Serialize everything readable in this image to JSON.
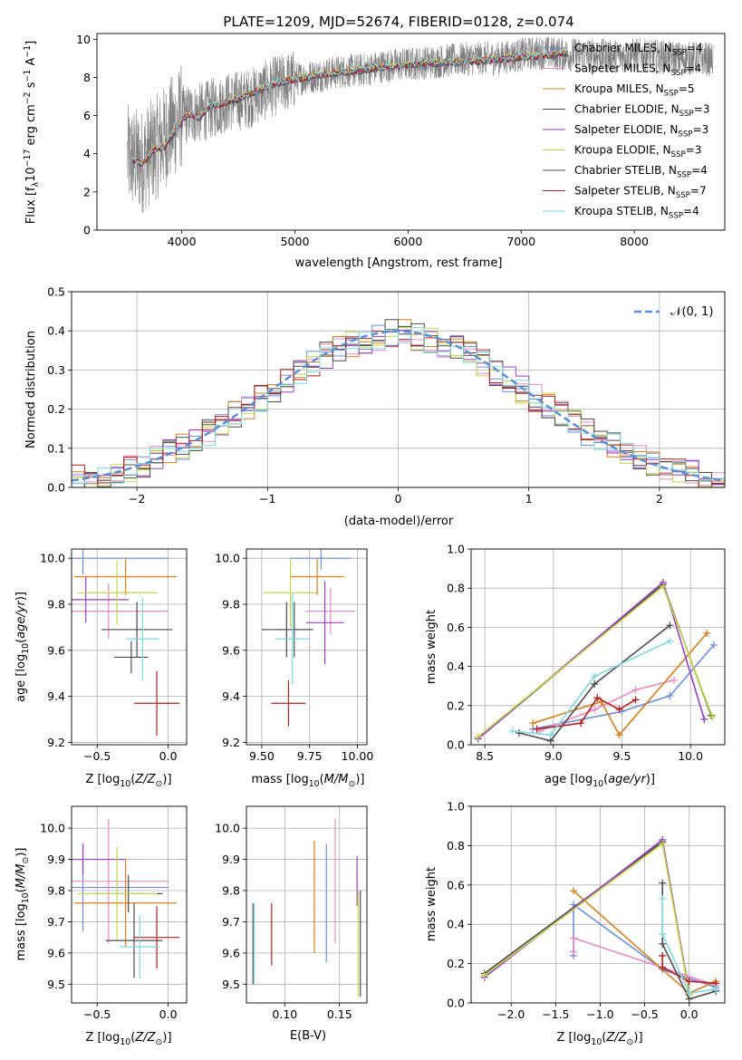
{
  "figure": {
    "title": "PLATE=1209, MJD=52674, FIBERID=0128, z=0.074"
  },
  "colors": {
    "Chabrier MILES": "#6d8fdc",
    "Salpeter MILES": "#e98bc4",
    "Kroupa MILES": "#d6801f",
    "Chabrier ELODIE": "#4a4a4a",
    "Salpeter ELODIE": "#9a3fc0",
    "Kroupa ELODIE": "#c3d64a",
    "Chabrier STELIB": "#4e4e4e",
    "Salpeter STELIB": "#b21f1f",
    "Kroupa STELIB": "#7fd9de",
    "data": "#808080",
    "normal": "#5b8fd9"
  },
  "chart_data": [
    {
      "id": "spectrum",
      "type": "line",
      "title": "PLATE=1209, MJD=52674, FIBERID=0128, z=0.074",
      "xlabel": "wavelength [Angstrom, rest frame]",
      "ylabel": "Flux [f_λ10^-17 erg cm^-2 s^-1 A^-1]",
      "xlim": [
        3250,
        8800
      ],
      "ylim": [
        0,
        10.3
      ],
      "xticks": [
        4000,
        5000,
        6000,
        7000,
        8000
      ],
      "yticks": [
        0,
        2,
        4,
        6,
        8,
        10
      ],
      "legend_position": "right",
      "legend": [
        {
          "label": "Chabrier MILES, N",
          "sub": "SSP",
          "suffix": "=4",
          "color_key": "Chabrier MILES"
        },
        {
          "label": "Salpeter MILES, N",
          "sub": "SSP",
          "suffix": "=4",
          "color_key": "Salpeter MILES"
        },
        {
          "label": "Kroupa MILES, N",
          "sub": "SSP",
          "suffix": "=5",
          "color_key": "Kroupa MILES"
        },
        {
          "label": "Chabrier ELODIE, N",
          "sub": "SSP",
          "suffix": "=3",
          "color_key": "Chabrier ELODIE"
        },
        {
          "label": "Salpeter ELODIE, N",
          "sub": "SSP",
          "suffix": "=3",
          "color_key": "Salpeter ELODIE"
        },
        {
          "label": "Kroupa ELODIE, N",
          "sub": "SSP",
          "suffix": "=3",
          "color_key": "Kroupa ELODIE"
        },
        {
          "label": "Chabrier STELIB, N",
          "sub": "SSP",
          "suffix": "=4",
          "color_key": "Chabrier STELIB"
        },
        {
          "label": "Salpeter STELIB, N",
          "sub": "SSP",
          "suffix": "=7",
          "color_key": "Salpeter STELIB"
        },
        {
          "label": "Kroupa STELIB, N",
          "sub": "SSP",
          "suffix": "=4",
          "color_key": "Kroupa STELIB"
        }
      ],
      "model_continuum": {
        "x": [
          3550,
          3650,
          3750,
          3850,
          3950,
          4050,
          4150,
          4250,
          4350,
          4500,
          4700,
          4900,
          5100,
          5300,
          5500,
          5700,
          5900,
          6100,
          6300,
          6500,
          6700,
          6900,
          7100,
          7300,
          7420
        ],
        "y": [
          3.7,
          3.5,
          4.2,
          4.4,
          5.3,
          6.1,
          5.9,
          6.5,
          6.6,
          6.9,
          7.4,
          7.8,
          8.0,
          8.2,
          8.3,
          8.5,
          8.6,
          8.7,
          8.8,
          8.8,
          8.9,
          9.0,
          9.1,
          9.2,
          9.3
        ]
      },
      "data_continuum": {
        "x": [
          3520,
          3650,
          3800,
          4000,
          4200,
          4400,
          4600,
          4800,
          5000,
          5200,
          5400,
          5600,
          5800,
          6000,
          6200,
          6400,
          6600,
          6800,
          7000,
          7200,
          7400,
          7600,
          7800,
          8000,
          8200,
          8400,
          8600,
          8700
        ],
        "y": [
          3.8,
          3.6,
          4.5,
          6.0,
          6.2,
          6.7,
          6.9,
          7.5,
          7.9,
          8.1,
          8.3,
          8.4,
          8.6,
          8.7,
          8.8,
          8.9,
          9.0,
          9.0,
          9.2,
          9.3,
          9.2,
          9.2,
          9.1,
          9.2,
          9.1,
          9.0,
          9.0,
          8.9
        ]
      }
    },
    {
      "id": "residuals",
      "type": "bar",
      "xlabel": "(data-model)/error",
      "ylabel": "Normed distribution",
      "xlim": [
        -2.5,
        2.5
      ],
      "ylim": [
        0,
        0.5
      ],
      "xticks": [
        -2,
        -1,
        0,
        1,
        2
      ],
      "yticks": [
        0.0,
        0.1,
        0.2,
        0.3,
        0.4,
        0.5
      ],
      "legend_position": "top-right",
      "legend": [
        "𝒩(0, 1)"
      ],
      "bin_width": 0.1,
      "histogram_envelope": {
        "x": [
          -2.5,
          -2.0,
          -1.5,
          -1.0,
          -0.5,
          0.0,
          0.5,
          1.0,
          1.5,
          2.0,
          2.5
        ],
        "y": [
          0.02,
          0.05,
          0.13,
          0.24,
          0.35,
          0.4,
          0.35,
          0.24,
          0.13,
          0.05,
          0.02
        ]
      }
    },
    {
      "id": "age-vs-Z",
      "type": "scatter",
      "xlabel": "Z [log10(Z/Z⊙)]",
      "ylabel": "age [log10(age/yr)]",
      "xlim": [
        -0.68,
        0.13
      ],
      "ylim": [
        9.19,
        10.04
      ],
      "xticks": [
        -0.5,
        0.0
      ],
      "yticks": [
        9.2,
        9.4,
        9.6,
        9.8,
        10.0
      ],
      "points": [
        {
          "color_key": "Chabrier MILES",
          "x": -0.6,
          "xerr": 0.6,
          "y": 10.0,
          "yerr": 0.07
        },
        {
          "color_key": "Salpeter MILES",
          "x": -0.42,
          "xerr": 0.42,
          "y": 9.77,
          "yerr": 0.12
        },
        {
          "color_key": "Kroupa MILES",
          "x": -0.3,
          "xerr": 0.36,
          "y": 9.92,
          "yerr": 0.08
        },
        {
          "color_key": "Chabrier ELODIE",
          "x": -0.22,
          "xerr": 0.25,
          "y": 9.69,
          "yerr": 0.12
        },
        {
          "color_key": "Salpeter ELODIE",
          "x": -0.58,
          "xerr": 0.3,
          "y": 9.82,
          "yerr": 0.1
        },
        {
          "color_key": "Kroupa ELODIE",
          "x": -0.36,
          "xerr": 0.28,
          "y": 9.85,
          "yerr": 0.14
        },
        {
          "color_key": "Chabrier STELIB",
          "x": -0.26,
          "xerr": 0.12,
          "y": 9.57,
          "yerr": 0.07
        },
        {
          "color_key": "Salpeter STELIB",
          "x": -0.08,
          "xerr": 0.16,
          "y": 9.37,
          "yerr": 0.14
        },
        {
          "color_key": "Kroupa STELIB",
          "x": -0.18,
          "xerr": 0.12,
          "y": 9.65,
          "yerr": 0.18
        }
      ]
    },
    {
      "id": "age-vs-mass",
      "type": "scatter",
      "xlabel": "mass [log10(M/M⊙)]",
      "xlim": [
        9.42,
        10.05
      ],
      "ylim": [
        9.19,
        10.04
      ],
      "xticks": [
        9.5,
        9.75,
        10.0
      ],
      "yticks": [
        9.2,
        9.4,
        9.6,
        9.8,
        10.0
      ],
      "points": [
        {
          "color_key": "Chabrier MILES",
          "x": 9.81,
          "xerr": 0.16,
          "y": 10.0,
          "yerr": 0.05
        },
        {
          "color_key": "Salpeter MILES",
          "x": 9.86,
          "xerr": 0.13,
          "y": 9.77,
          "yerr": 0.1
        },
        {
          "color_key": "Kroupa MILES",
          "x": 9.79,
          "xerr": 0.14,
          "y": 9.92,
          "yerr": 0.08
        },
        {
          "color_key": "Chabrier ELODIE",
          "x": 9.63,
          "xerr": 0.13,
          "y": 9.69,
          "yerr": 0.12
        },
        {
          "color_key": "Salpeter ELODIE",
          "x": 9.83,
          "xerr": 0.1,
          "y": 9.72,
          "yerr": 0.18
        },
        {
          "color_key": "Kroupa ELODIE",
          "x": 9.65,
          "xerr": 0.14,
          "y": 9.85,
          "yerr": 0.15
        },
        {
          "color_key": "Chabrier STELIB",
          "x": 9.67,
          "xerr": 0.1,
          "y": 9.69,
          "yerr": 0.12
        },
        {
          "color_key": "Salpeter STELIB",
          "x": 9.64,
          "xerr": 0.09,
          "y": 9.37,
          "yerr": 0.1
        },
        {
          "color_key": "Kroupa STELIB",
          "x": 9.66,
          "xerr": 0.09,
          "y": 9.65,
          "yerr": 0.2
        }
      ]
    },
    {
      "id": "weight-vs-age",
      "type": "line",
      "xlabel": "age [log10(age/yr)]",
      "ylabel": "mass weight",
      "xlim": [
        8.4,
        10.25
      ],
      "ylim": [
        0,
        1.0
      ],
      "xticks": [
        8.5,
        9.0,
        9.5,
        10.0
      ],
      "yticks": [
        0.0,
        0.2,
        0.4,
        0.6,
        0.8,
        1.0
      ],
      "series": [
        {
          "color_key": "Chabrier MILES",
          "x": [
            8.85,
            9.5,
            9.85,
            10.17
          ],
          "y": [
            0.08,
            0.17,
            0.25,
            0.51
          ]
        },
        {
          "color_key": "Salpeter MILES",
          "x": [
            8.9,
            9.3,
            9.6,
            9.88
          ],
          "y": [
            0.07,
            0.18,
            0.28,
            0.33
          ]
        },
        {
          "color_key": "Kroupa MILES",
          "x": [
            8.85,
            9.35,
            9.48,
            10.12
          ],
          "y": [
            0.11,
            0.22,
            0.05,
            0.57
          ]
        },
        {
          "color_key": "Chabrier ELODIE",
          "x": [
            8.45,
            9.8,
            10.15
          ],
          "y": [
            0.03,
            0.82,
            0.15
          ]
        },
        {
          "color_key": "Salpeter ELODIE",
          "x": [
            8.45,
            9.8,
            10.1
          ],
          "y": [
            0.03,
            0.83,
            0.13
          ]
        },
        {
          "color_key": "Kroupa ELODIE",
          "x": [
            8.45,
            9.8,
            10.16
          ],
          "y": [
            0.04,
            0.81,
            0.14
          ]
        },
        {
          "color_key": "Chabrier STELIB",
          "x": [
            8.75,
            8.98,
            9.3,
            9.85
          ],
          "y": [
            0.06,
            0.02,
            0.31,
            0.61
          ]
        },
        {
          "color_key": "Salpeter STELIB",
          "x": [
            8.88,
            9.2,
            9.32,
            9.48,
            9.6
          ],
          "y": [
            0.08,
            0.11,
            0.24,
            0.18,
            0.23
          ]
        },
        {
          "color_key": "Kroupa STELIB",
          "x": [
            8.7,
            8.98,
            9.3,
            9.85
          ],
          "y": [
            0.07,
            0.05,
            0.35,
            0.53
          ]
        }
      ]
    },
    {
      "id": "mass-vs-Z",
      "type": "scatter",
      "xlabel": "Z [log10(Z/Z⊙)]",
      "ylabel": "mass [log10(M/M⊙)]",
      "xlim": [
        -0.68,
        0.13
      ],
      "ylim": [
        9.44,
        10.07
      ],
      "xticks": [
        -0.5,
        0.0
      ],
      "yticks": [
        9.5,
        9.6,
        9.7,
        9.8,
        9.9,
        10.0
      ],
      "points": [
        {
          "color_key": "Chabrier MILES",
          "x": -0.6,
          "xerr": 0.6,
          "y": 9.81,
          "yerr": 0.14
        },
        {
          "color_key": "Salpeter MILES",
          "x": -0.42,
          "xerr": 0.42,
          "y": 9.83,
          "yerr": 0.2
        },
        {
          "color_key": "Kroupa MILES",
          "x": -0.3,
          "xerr": 0.36,
          "y": 9.76,
          "yerr": 0.14
        },
        {
          "color_key": "Chabrier ELODIE",
          "x": -0.28,
          "xerr": 0.24,
          "y": 9.79,
          "yerr": 0.06
        },
        {
          "color_key": "Salpeter ELODIE",
          "x": -0.6,
          "xerr": 0.3,
          "y": 9.9,
          "yerr": 0.05
        },
        {
          "color_key": "Kroupa ELODIE",
          "x": -0.36,
          "xerr": 0.28,
          "y": 9.79,
          "yerr": 0.15
        },
        {
          "color_key": "Chabrier STELIB",
          "x": -0.24,
          "xerr": 0.2,
          "y": 9.64,
          "yerr": 0.12
        },
        {
          "color_key": "Salpeter STELIB",
          "x": -0.08,
          "xerr": 0.16,
          "y": 9.65,
          "yerr": 0.1
        },
        {
          "color_key": "Kroupa STELIB",
          "x": -0.2,
          "xerr": 0.14,
          "y": 9.62,
          "yerr": 0.1
        }
      ]
    },
    {
      "id": "mass-vs-ebv",
      "type": "scatter",
      "xlabel": "E(B-V)",
      "xlim": [
        0.065,
        0.175
      ],
      "ylim": [
        9.44,
        10.07
      ],
      "xticks": [
        0.1,
        0.15
      ],
      "yticks": [
        9.5,
        9.6,
        9.7,
        9.8,
        9.9,
        10.0
      ],
      "points": [
        {
          "color_key": "Chabrier MILES",
          "x": 0.138,
          "y": 9.76,
          "yerr": 0.19
        },
        {
          "color_key": "Salpeter MILES",
          "x": 0.146,
          "y": 9.83,
          "yerr": 0.2
        },
        {
          "color_key": "Kroupa MILES",
          "x": 0.127,
          "y": 9.78,
          "yerr": 0.18
        },
        {
          "color_key": "Chabrier ELODIE",
          "x": 0.169,
          "y": 9.63,
          "yerr": 0.17
        },
        {
          "color_key": "Salpeter ELODIE",
          "x": 0.166,
          "y": 9.83,
          "yerr": 0.08
        },
        {
          "color_key": "Kroupa ELODIE",
          "x": 0.167,
          "y": 9.63,
          "yerr": 0.17
        },
        {
          "color_key": "Chabrier STELIB",
          "x": 0.071,
          "y": 9.63,
          "yerr": 0.13
        },
        {
          "color_key": "Salpeter STELIB",
          "x": 0.088,
          "y": 9.66,
          "yerr": 0.1
        },
        {
          "color_key": "Kroupa STELIB",
          "x": 0.072,
          "y": 9.63,
          "yerr": 0.13
        }
      ]
    },
    {
      "id": "weight-vs-Z",
      "type": "line",
      "xlabel": "Z [log10(Z/Z⊙)]",
      "ylabel": "mass weight",
      "xlim": [
        -2.45,
        0.4
      ],
      "ylim": [
        0,
        1.0
      ],
      "xticks": [
        -2.0,
        -1.5,
        -1.0,
        -0.5,
        0.0
      ],
      "yticks": [
        0.0,
        0.2,
        0.4,
        0.6,
        0.8,
        1.0
      ],
      "series": [
        {
          "color_key": "Chabrier MILES",
          "x": [
            -1.3,
            -1.3,
            -0.3,
            0.3
          ],
          "y": [
            0.24,
            0.5,
            0.17,
            0.08
          ]
        },
        {
          "color_key": "Salpeter MILES",
          "x": [
            -1.3,
            -1.3,
            0.3
          ],
          "y": [
            0.26,
            0.33,
            0.09
          ]
        },
        {
          "color_key": "Kroupa MILES",
          "x": [
            -1.3,
            0.0,
            0.3
          ],
          "y": [
            0.57,
            0.05,
            0.11
          ]
        },
        {
          "color_key": "Chabrier ELODIE",
          "x": [
            -2.3,
            -0.3,
            0.0
          ],
          "y": [
            0.15,
            0.82,
            0.05
          ]
        },
        {
          "color_key": "Salpeter ELODIE",
          "x": [
            -2.3,
            -0.3,
            0.0
          ],
          "y": [
            0.13,
            0.83,
            0.05
          ]
        },
        {
          "color_key": "Kroupa ELODIE",
          "x": [
            -2.3,
            -0.3,
            0.0
          ],
          "y": [
            0.14,
            0.81,
            0.04
          ]
        },
        {
          "color_key": "Chabrier STELIB",
          "x": [
            -0.3,
            -0.3,
            0.0,
            0.3
          ],
          "y": [
            0.61,
            0.3,
            0.02,
            0.06
          ]
        },
        {
          "color_key": "Salpeter STELIB",
          "x": [
            -0.3,
            -0.3,
            0.0,
            0.3
          ],
          "y": [
            0.24,
            0.18,
            0.11,
            0.1
          ]
        },
        {
          "color_key": "Kroupa STELIB",
          "x": [
            -0.3,
            -0.3,
            0.0,
            0.3
          ],
          "y": [
            0.53,
            0.35,
            0.05,
            0.07
          ]
        }
      ]
    }
  ]
}
